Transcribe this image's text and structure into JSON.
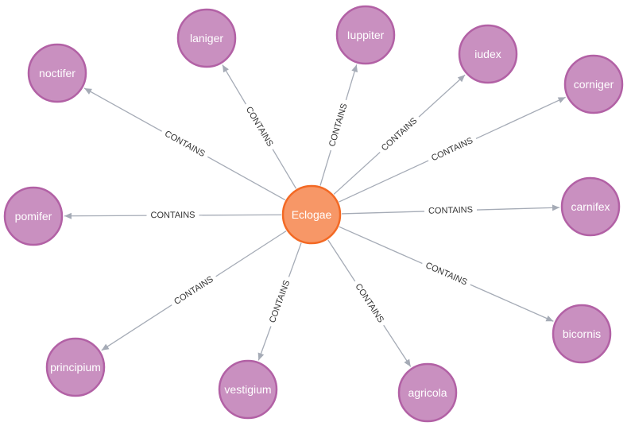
{
  "graph": {
    "colors": {
      "leaf_fill": "#c990c0",
      "leaf_stroke": "#b261a5",
      "center_fill": "#f79767",
      "center_stroke": "#f36924",
      "edge": "#a5abb6",
      "edge_label": "#333333"
    },
    "center": {
      "id": "eclogae",
      "label": "Eclogae"
    },
    "relationship_label": "CONTAINS",
    "nodes": [
      {
        "id": "noctifer",
        "label": "noctifer"
      },
      {
        "id": "laniger",
        "label": "laniger"
      },
      {
        "id": "iuppiter",
        "label": "Iuppiter"
      },
      {
        "id": "iudex",
        "label": "iudex"
      },
      {
        "id": "corniger",
        "label": "corniger"
      },
      {
        "id": "carnifex",
        "label": "carnifex"
      },
      {
        "id": "bicornis",
        "label": "bicornis"
      },
      {
        "id": "agricola",
        "label": "agricola"
      },
      {
        "id": "vestigium",
        "label": "vestigium"
      },
      {
        "id": "principium",
        "label": "principium"
      },
      {
        "id": "pomifer",
        "label": "pomifer"
      }
    ]
  }
}
